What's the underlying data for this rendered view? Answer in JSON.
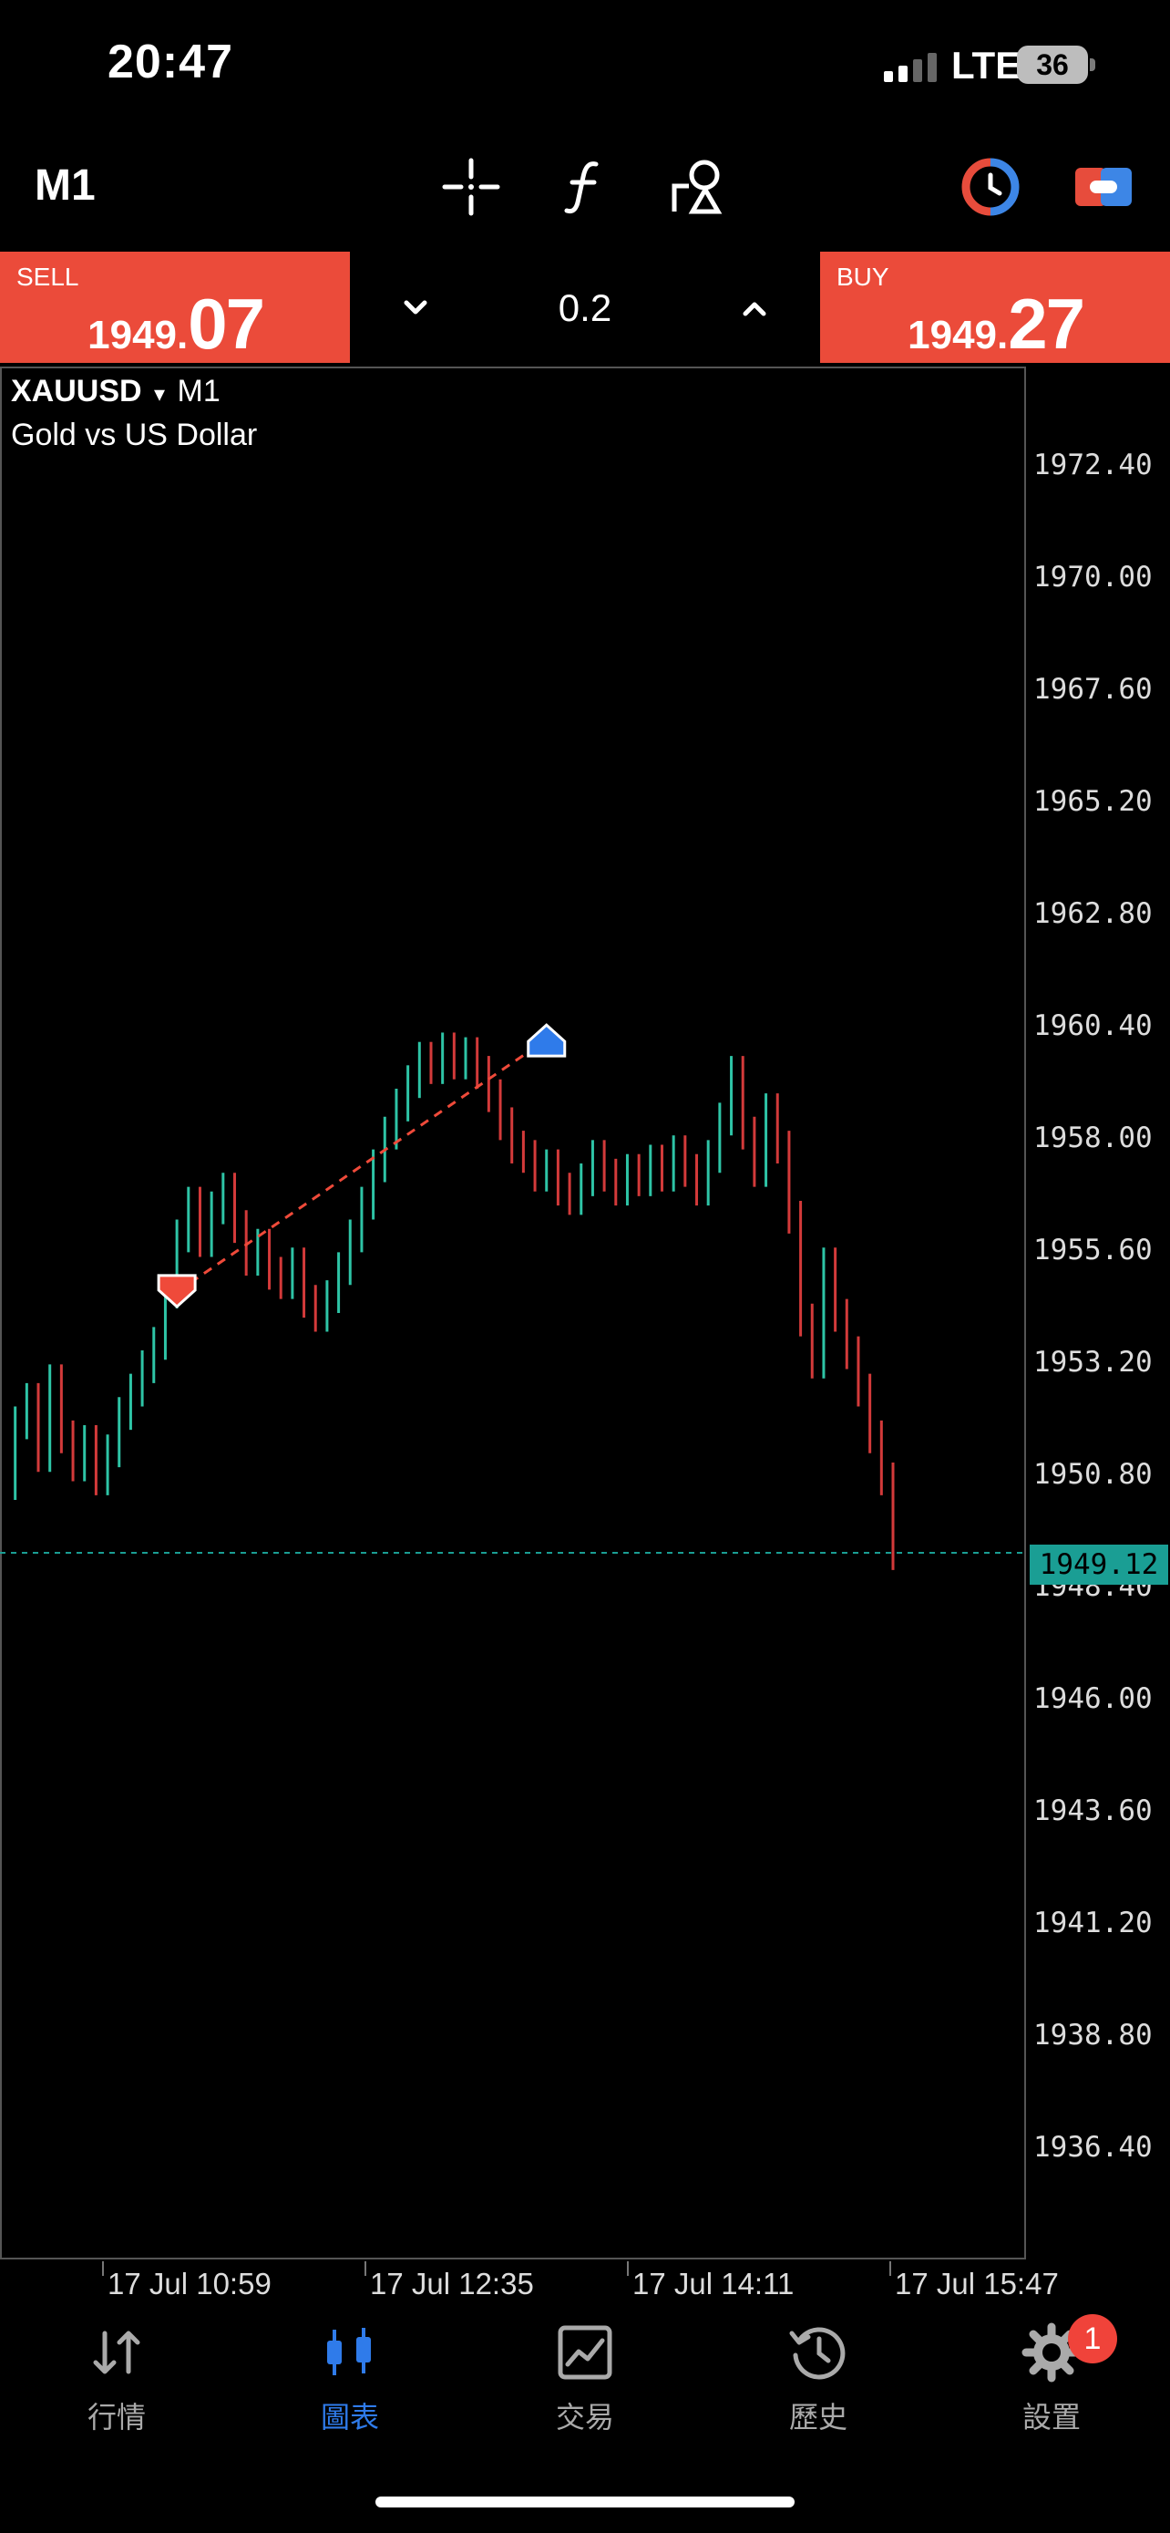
{
  "status_bar": {
    "time": "20:47",
    "network": "LTE",
    "battery": "36"
  },
  "toolbar": {
    "timeframe": "M1"
  },
  "trade": {
    "sell_label": "SELL",
    "sell_price_small": "1949.",
    "sell_price_big": "07",
    "buy_label": "BUY",
    "buy_price_small": "1949.",
    "buy_price_big": "27",
    "volume": "0.2"
  },
  "chart": {
    "symbol": "XAUUSD",
    "dropdown_glyph": "▾",
    "timeframe": "M1",
    "description": "Gold vs US Dollar",
    "current_price": "1949.12",
    "price_axis": [
      "1972.40",
      "1970.00",
      "1967.60",
      "1965.20",
      "1962.80",
      "1960.40",
      "1958.00",
      "1955.60",
      "1953.20",
      "1950.80",
      "1948.40",
      "1946.00",
      "1943.60",
      "1941.20",
      "1938.80",
      "1936.40"
    ],
    "time_axis": [
      "17 Jul 10:59",
      "17 Jul 12:35",
      "17 Jul 14:11",
      "17 Jul 15:47"
    ]
  },
  "chart_data": {
    "type": "line",
    "ylim": [
      1934.0,
      1974.5
    ],
    "current": 1949.12,
    "series": [
      {
        "values": [
          1950.6,
          1951.9,
          1952.4,
          1951.2,
          1952.8,
          1951.6,
          1951.0,
          1951.5,
          1950.7,
          1951.3,
          1952.1,
          1952.6,
          1953.1,
          1953.6,
          1954.7,
          1955.9,
          1956.6,
          1955.8,
          1956.5,
          1956.9,
          1956.1,
          1955.4,
          1955.7,
          1955.1,
          1954.9,
          1955.3,
          1954.5,
          1954.2,
          1954.6,
          1955.2,
          1955.9,
          1956.6,
          1957.4,
          1958.1,
          1958.7,
          1959.2,
          1959.7,
          1959.5,
          1959.9,
          1959.6,
          1959.8,
          1959.4,
          1958.9,
          1958.3,
          1957.8,
          1957.6,
          1957.2,
          1957.4,
          1956.9,
          1956.7,
          1957.1,
          1957.6,
          1957.2,
          1956.9,
          1957.3,
          1957.1,
          1957.5,
          1957.2,
          1957.7,
          1957.3,
          1956.9,
          1957.6,
          1958.4,
          1959.4,
          1958.1,
          1957.3,
          1958.6,
          1957.8,
          1956.3,
          1954.1,
          1953.2,
          1955.3,
          1954.2,
          1953.4,
          1952.6,
          1951.6,
          1950.7,
          1949.1
        ]
      }
    ],
    "trade_markers": [
      {
        "side": "sell",
        "index": 15,
        "price": 1954.7
      },
      {
        "side": "buy",
        "index": 47,
        "price": 1960.1
      }
    ]
  },
  "nav": {
    "items": [
      {
        "label": "行情",
        "icon": "quotes-arrows-icon"
      },
      {
        "label": "圖表",
        "icon": "chart-candles-icon"
      },
      {
        "label": "交易",
        "icon": "trade-line-icon"
      },
      {
        "label": "歷史",
        "icon": "history-clock-icon"
      },
      {
        "label": "設置",
        "icon": "settings-gear-icon"
      }
    ],
    "active_index": 1,
    "badge": "1"
  }
}
